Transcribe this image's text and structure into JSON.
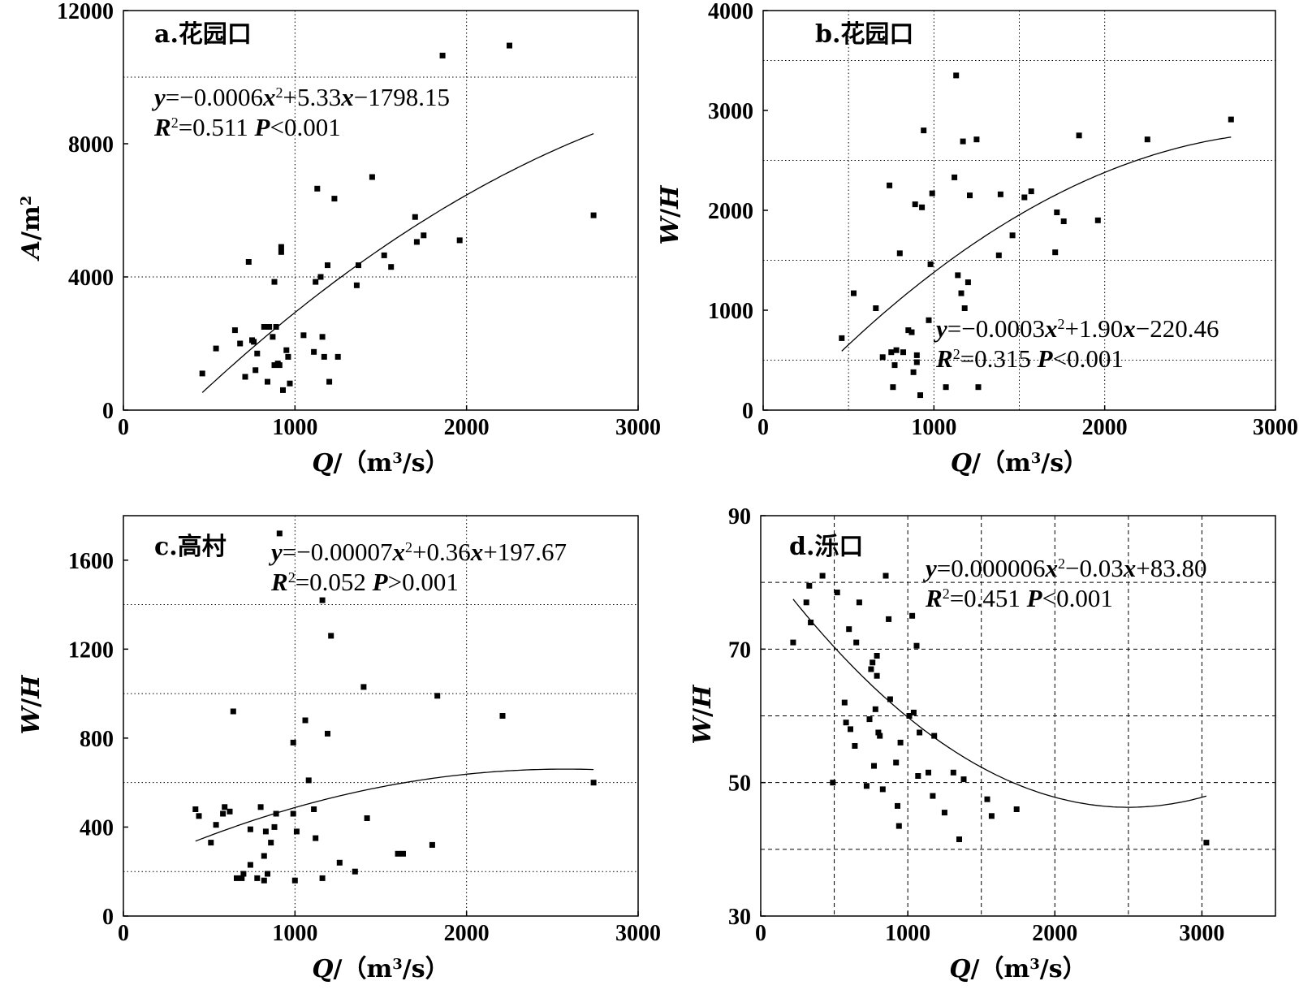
{
  "chart_data": [
    {
      "type": "scatter",
      "panel": "a.",
      "title": "花园口",
      "xlabel": "Q/（m³/s）",
      "ylabel": "A/m²",
      "xlim": [
        0,
        3000
      ],
      "ylim": [
        0,
        12000
      ],
      "xticks": [
        "0",
        "1000",
        "2000",
        "3000"
      ],
      "yticks": [
        "0",
        "4000",
        "8000",
        "12000"
      ],
      "grid": "dotted",
      "equation": "y=−0.0006x²+5.33x−1798.15",
      "stats": "R²=0.511    P<0.001",
      "fit": {
        "a": -0.0006,
        "b": 5.33,
        "c": -1798.15,
        "x_range": [
          460,
          2740
        ]
      },
      "points": [
        [
          460,
          1100
        ],
        [
          540,
          1850
        ],
        [
          650,
          2400
        ],
        [
          680,
          2000
        ],
        [
          710,
          1000
        ],
        [
          730,
          4450
        ],
        [
          750,
          2100
        ],
        [
          760,
          2050
        ],
        [
          770,
          1200
        ],
        [
          780,
          1700
        ],
        [
          820,
          2500
        ],
        [
          840,
          850
        ],
        [
          850,
          2500
        ],
        [
          870,
          2200
        ],
        [
          880,
          3850
        ],
        [
          880,
          1350
        ],
        [
          890,
          2500
        ],
        [
          900,
          1400
        ],
        [
          910,
          1350
        ],
        [
          920,
          4900
        ],
        [
          920,
          4750
        ],
        [
          930,
          600
        ],
        [
          950,
          1800
        ],
        [
          960,
          1600
        ],
        [
          970,
          800
        ],
        [
          1050,
          2250
        ],
        [
          1110,
          1750
        ],
        [
          1120,
          3850
        ],
        [
          1130,
          6650
        ],
        [
          1150,
          4000
        ],
        [
          1160,
          2200
        ],
        [
          1170,
          1600
        ],
        [
          1190,
          4350
        ],
        [
          1200,
          850
        ],
        [
          1230,
          6350
        ],
        [
          1250,
          1600
        ],
        [
          1360,
          3750
        ],
        [
          1370,
          4350
        ],
        [
          1450,
          7000
        ],
        [
          1520,
          4650
        ],
        [
          1560,
          4300
        ],
        [
          1700,
          5800
        ],
        [
          1710,
          5050
        ],
        [
          1750,
          5250
        ],
        [
          1860,
          10650
        ],
        [
          1960,
          5100
        ],
        [
          2250,
          10950
        ],
        [
          2740,
          5850
        ]
      ]
    },
    {
      "type": "scatter",
      "panel": "b.",
      "title": "花园口",
      "xlabel": "Q/（m³/s）",
      "ylabel": "W/H",
      "xlim": [
        0,
        3000
      ],
      "ylim": [
        0,
        4000
      ],
      "xticks": [
        "0",
        "1000",
        "2000",
        "3000"
      ],
      "yticks": [
        "0",
        "1000",
        "2000",
        "3000",
        "4000"
      ],
      "grid": "dotted",
      "equation": "y=−0.0003x²+1.90x−220.46",
      "stats": "R²=0.315    P<0.001",
      "fit": {
        "a": -0.0003,
        "b": 1.9,
        "c": -220.46,
        "x_range": [
          460,
          2740
        ]
      },
      "points": [
        [
          460,
          720
        ],
        [
          530,
          1170
        ],
        [
          660,
          1020
        ],
        [
          700,
          530
        ],
        [
          740,
          2250
        ],
        [
          750,
          580
        ],
        [
          760,
          230
        ],
        [
          770,
          450
        ],
        [
          780,
          600
        ],
        [
          800,
          1570
        ],
        [
          820,
          580
        ],
        [
          850,
          800
        ],
        [
          870,
          780
        ],
        [
          880,
          380
        ],
        [
          890,
          2060
        ],
        [
          900,
          480
        ],
        [
          900,
          550
        ],
        [
          920,
          150
        ],
        [
          930,
          2030
        ],
        [
          940,
          2800
        ],
        [
          970,
          900
        ],
        [
          980,
          1460
        ],
        [
          990,
          2170
        ],
        [
          1070,
          230
        ],
        [
          1120,
          2330
        ],
        [
          1130,
          3350
        ],
        [
          1140,
          1350
        ],
        [
          1160,
          1170
        ],
        [
          1170,
          2690
        ],
        [
          1180,
          1020
        ],
        [
          1200,
          1280
        ],
        [
          1210,
          2150
        ],
        [
          1250,
          2710
        ],
        [
          1260,
          230
        ],
        [
          1380,
          1550
        ],
        [
          1390,
          2160
        ],
        [
          1460,
          1750
        ],
        [
          1530,
          2130
        ],
        [
          1570,
          2190
        ],
        [
          1710,
          1580
        ],
        [
          1720,
          1980
        ],
        [
          1760,
          1890
        ],
        [
          1850,
          2750
        ],
        [
          1960,
          1900
        ],
        [
          2250,
          2710
        ],
        [
          2740,
          2910
        ]
      ]
    },
    {
      "type": "scatter",
      "panel": "c.",
      "title": "高村",
      "xlabel": "Q/（m³/s）",
      "ylabel": "W/H",
      "xlim": [
        0,
        3000
      ],
      "ylim": [
        0,
        1800
      ],
      "xticks": [
        "0",
        "1000",
        "2000",
        "3000"
      ],
      "yticks": [
        "0",
        "400",
        "800",
        "1200",
        "1600"
      ],
      "grid": "dotted",
      "equation": "y=−0.00007x²+0.36x+197.67",
      "stats": "R²=0.052    P>0.001",
      "fit": {
        "a": -7e-05,
        "b": 0.36,
        "c": 197.67,
        "x_range": [
          420,
          2740
        ]
      },
      "points": [
        [
          420,
          480
        ],
        [
          440,
          450
        ],
        [
          510,
          330
        ],
        [
          540,
          410
        ],
        [
          580,
          460
        ],
        [
          590,
          490
        ],
        [
          620,
          470
        ],
        [
          640,
          920
        ],
        [
          660,
          170
        ],
        [
          690,
          170
        ],
        [
          700,
          190
        ],
        [
          740,
          390
        ],
        [
          740,
          230
        ],
        [
          780,
          170
        ],
        [
          800,
          490
        ],
        [
          820,
          160
        ],
        [
          820,
          270
        ],
        [
          830,
          380
        ],
        [
          840,
          190
        ],
        [
          860,
          330
        ],
        [
          880,
          400
        ],
        [
          890,
          460
        ],
        [
          910,
          1720
        ],
        [
          990,
          780
        ],
        [
          990,
          460
        ],
        [
          1000,
          160
        ],
        [
          1010,
          380
        ],
        [
          1060,
          880
        ],
        [
          1080,
          610
        ],
        [
          1110,
          480
        ],
        [
          1120,
          350
        ],
        [
          1160,
          1420
        ],
        [
          1160,
          170
        ],
        [
          1190,
          820
        ],
        [
          1210,
          1260
        ],
        [
          1260,
          240
        ],
        [
          1350,
          200
        ],
        [
          1400,
          1030
        ],
        [
          1420,
          440
        ],
        [
          1600,
          280
        ],
        [
          1630,
          280
        ],
        [
          1800,
          320
        ],
        [
          1830,
          990
        ],
        [
          2210,
          900
        ],
        [
          2740,
          600
        ]
      ]
    },
    {
      "type": "scatter",
      "panel": "d.",
      "title": "泺口",
      "xlabel": "Q/（m³/s）",
      "ylabel": "W/H",
      "xlim": [
        0,
        3500
      ],
      "ylim": [
        30,
        90
      ],
      "xticks": [
        "0",
        "1000",
        "2000",
        "3000"
      ],
      "yticks": [
        "30",
        "50",
        "70",
        "90"
      ],
      "grid": "dashed",
      "equation": "y=0.000006x²−0.03x+83.80",
      "stats": "R²=0.451    P<0.001",
      "fit": {
        "a": 6e-06,
        "b": -0.03,
        "c": 83.8,
        "x_range": [
          220,
          3030
        ]
      },
      "points": [
        [
          220,
          71
        ],
        [
          310,
          77
        ],
        [
          330,
          79.5
        ],
        [
          340,
          74
        ],
        [
          420,
          81
        ],
        [
          490,
          50
        ],
        [
          520,
          78.5
        ],
        [
          570,
          62
        ],
        [
          580,
          59
        ],
        [
          600,
          73
        ],
        [
          610,
          58
        ],
        [
          640,
          55.5
        ],
        [
          650,
          71
        ],
        [
          670,
          77
        ],
        [
          720,
          49.5
        ],
        [
          740,
          59.5
        ],
        [
          750,
          67
        ],
        [
          760,
          68
        ],
        [
          770,
          52.5
        ],
        [
          780,
          61
        ],
        [
          790,
          66
        ],
        [
          790,
          69
        ],
        [
          800,
          57.5
        ],
        [
          810,
          57
        ],
        [
          830,
          49
        ],
        [
          850,
          81
        ],
        [
          870,
          74.5
        ],
        [
          880,
          62.5
        ],
        [
          920,
          53
        ],
        [
          930,
          46.5
        ],
        [
          940,
          43.5
        ],
        [
          950,
          56
        ],
        [
          1010,
          60
        ],
        [
          1030,
          75
        ],
        [
          1040,
          60.5
        ],
        [
          1060,
          70.5
        ],
        [
          1070,
          51
        ],
        [
          1080,
          57.5
        ],
        [
          1140,
          51.5
        ],
        [
          1170,
          48
        ],
        [
          1180,
          57
        ],
        [
          1250,
          45.5
        ],
        [
          1310,
          51.5
        ],
        [
          1350,
          41.5
        ],
        [
          1380,
          50.5
        ],
        [
          1540,
          47.5
        ],
        [
          1570,
          45
        ],
        [
          1740,
          46
        ],
        [
          3030,
          41
        ]
      ]
    }
  ]
}
